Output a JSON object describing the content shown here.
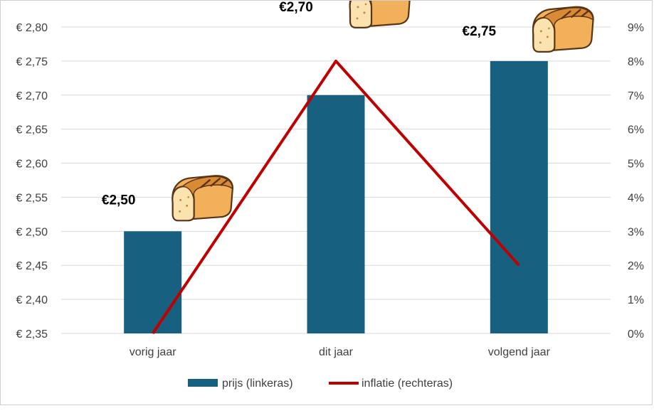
{
  "chart_data": {
    "type": "bar",
    "title": "",
    "categories": [
      "vorig jaar",
      "dit jaar",
      "volgend jaar"
    ],
    "series": [
      {
        "name": "prijs (linkeras)",
        "type": "bar",
        "axis": "left",
        "color": "#17607f",
        "values": [
          2.5,
          2.7,
          2.75
        ],
        "labels": [
          "€2,50",
          "€2,70",
          "€2,75"
        ]
      },
      {
        "name": "inflatie (rechteras)",
        "type": "line",
        "axis": "right",
        "color": "#c00000",
        "values": [
          0,
          8,
          2
        ]
      }
    ],
    "left_axis": {
      "ylim": [
        2.35,
        2.8
      ],
      "ticks": [
        2.35,
        2.4,
        2.45,
        2.5,
        2.55,
        2.6,
        2.65,
        2.7,
        2.75,
        2.8
      ],
      "tick_labels": [
        "€ 2,35",
        "€ 2,40",
        "€ 2,45",
        "€ 2,50",
        "€ 2,55",
        "€ 2,60",
        "€ 2,65",
        "€ 2,70",
        "€ 2,75",
        "€ 2,80"
      ]
    },
    "right_axis": {
      "ylim": [
        0,
        9
      ],
      "ticks": [
        0,
        1,
        2,
        3,
        4,
        5,
        6,
        7,
        8,
        9
      ],
      "tick_labels": [
        "0%",
        "1%",
        "2%",
        "3%",
        "4%",
        "5%",
        "6%",
        "7%",
        "8%",
        "9%"
      ]
    },
    "grid": true,
    "legend_position": "bottom",
    "decoration_icon": "bread-loaf-icon"
  }
}
